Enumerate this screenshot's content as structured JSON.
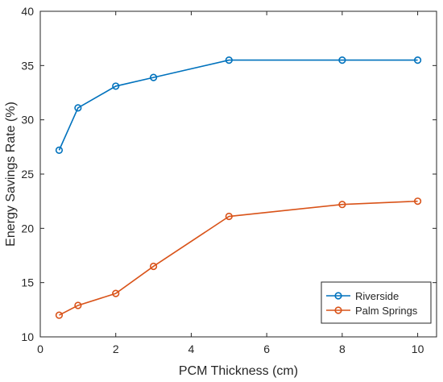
{
  "chart_data": {
    "type": "line",
    "title": "",
    "xlabel": "PCM Thickness (cm)",
    "ylabel": "Energy Savings Rate (%)",
    "xlim": [
      0,
      10.5
    ],
    "ylim": [
      10,
      40
    ],
    "xticks": [
      0,
      2,
      4,
      6,
      8,
      10
    ],
    "yticks": [
      10,
      15,
      20,
      25,
      30,
      35,
      40
    ],
    "grid": false,
    "legend_position": "bottom-right",
    "series": [
      {
        "name": "Riverside",
        "color": "#0072BD",
        "marker": "circle",
        "x": [
          0.5,
          1,
          2,
          3,
          5,
          8,
          10
        ],
        "y": [
          27.2,
          31.1,
          33.1,
          33.9,
          35.5,
          35.5,
          35.5
        ]
      },
      {
        "name": "Palm Springs",
        "color": "#D95319",
        "marker": "circle",
        "x": [
          0.5,
          1,
          2,
          3,
          5,
          8,
          10
        ],
        "y": [
          12.0,
          12.9,
          14.0,
          16.5,
          21.1,
          22.2,
          22.5
        ]
      }
    ]
  }
}
